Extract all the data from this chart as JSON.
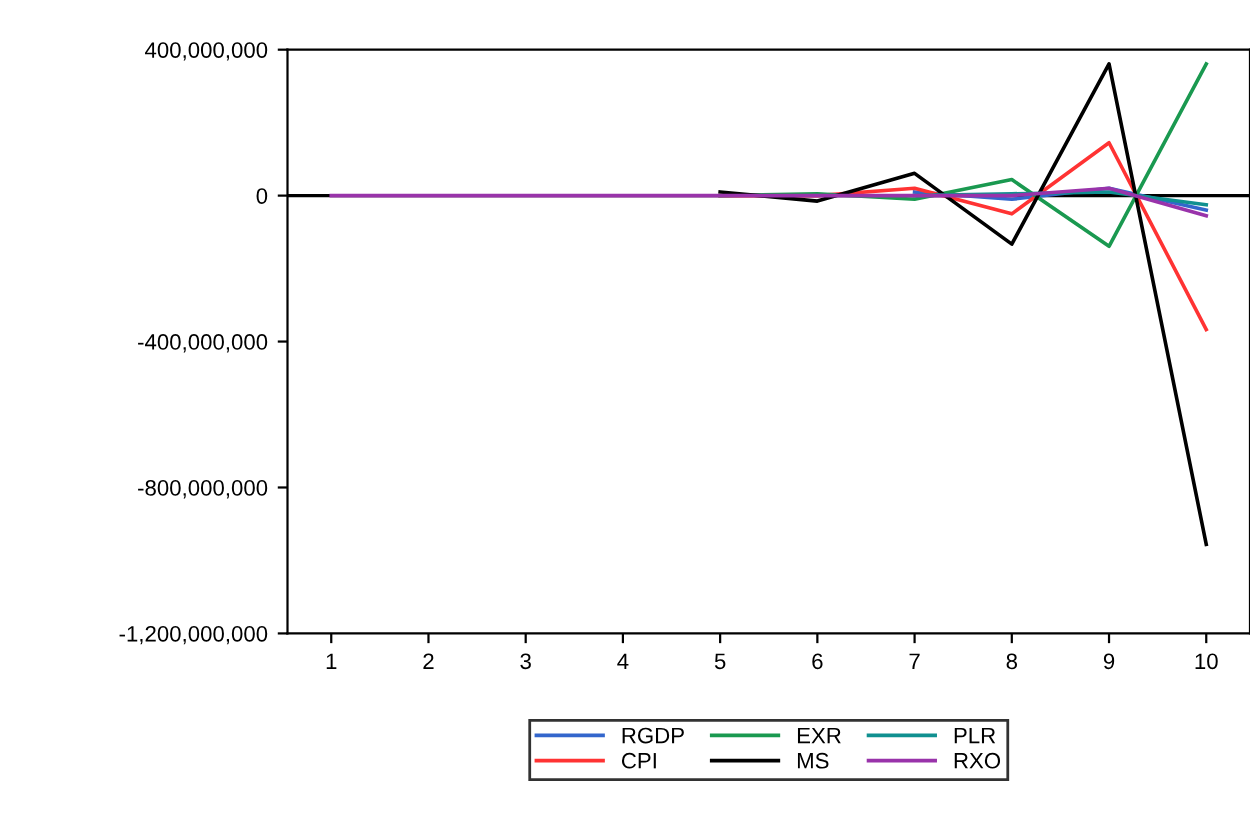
{
  "chart_data": {
    "type": "line",
    "x": [
      1,
      2,
      3,
      4,
      5,
      6,
      7,
      8,
      9,
      10
    ],
    "xlim": [
      0.55,
      10.45
    ],
    "xticks": [
      1,
      2,
      3,
      4,
      5,
      6,
      7,
      8,
      9,
      10
    ],
    "ylim": [
      -1200000000,
      400000000
    ],
    "yticks": [
      {
        "value": -1200000000,
        "label": "-1,200,000,000"
      },
      {
        "value": -800000000,
        "label": "-800,000,000"
      },
      {
        "value": -400000000,
        "label": "-400,000,000"
      },
      {
        "value": 0,
        "label": "0"
      },
      {
        "value": 400000000,
        "label": "400,000,000"
      }
    ],
    "ref_lines": [
      {
        "axis": "y",
        "value": 0,
        "color": "#000000"
      }
    ],
    "legend": "bottom",
    "grid": false,
    "series": [
      {
        "name": "RGDP",
        "color": "#3366cc",
        "values": [
          null,
          null,
          null,
          null,
          null,
          null,
          10000000,
          -10000000,
          20000000,
          -40000000
        ]
      },
      {
        "name": "CPI",
        "color": "#ff3333",
        "values": [
          null,
          null,
          null,
          null,
          0,
          0,
          20000000,
          -50000000,
          145000000,
          -367000000
        ]
      },
      {
        "name": "EXR",
        "color": "#1a9950",
        "values": [
          null,
          null,
          null,
          null,
          0,
          5000000,
          -10000000,
          44000000,
          -139000000,
          361000000
        ]
      },
      {
        "name": "MS",
        "color": "#000000",
        "values": [
          null,
          null,
          null,
          null,
          10000000,
          -15000000,
          61000000,
          -133000000,
          361000000,
          -956000000
        ]
      },
      {
        "name": "PLR",
        "color": "#109090",
        "values": [
          null,
          null,
          null,
          null,
          null,
          null,
          0,
          5000000,
          10000000,
          -25000000
        ]
      },
      {
        "name": "RXO",
        "color": "#9933aa",
        "values": [
          0,
          0,
          0,
          0,
          0,
          0,
          0,
          0,
          20000000,
          -55000000
        ]
      }
    ]
  }
}
